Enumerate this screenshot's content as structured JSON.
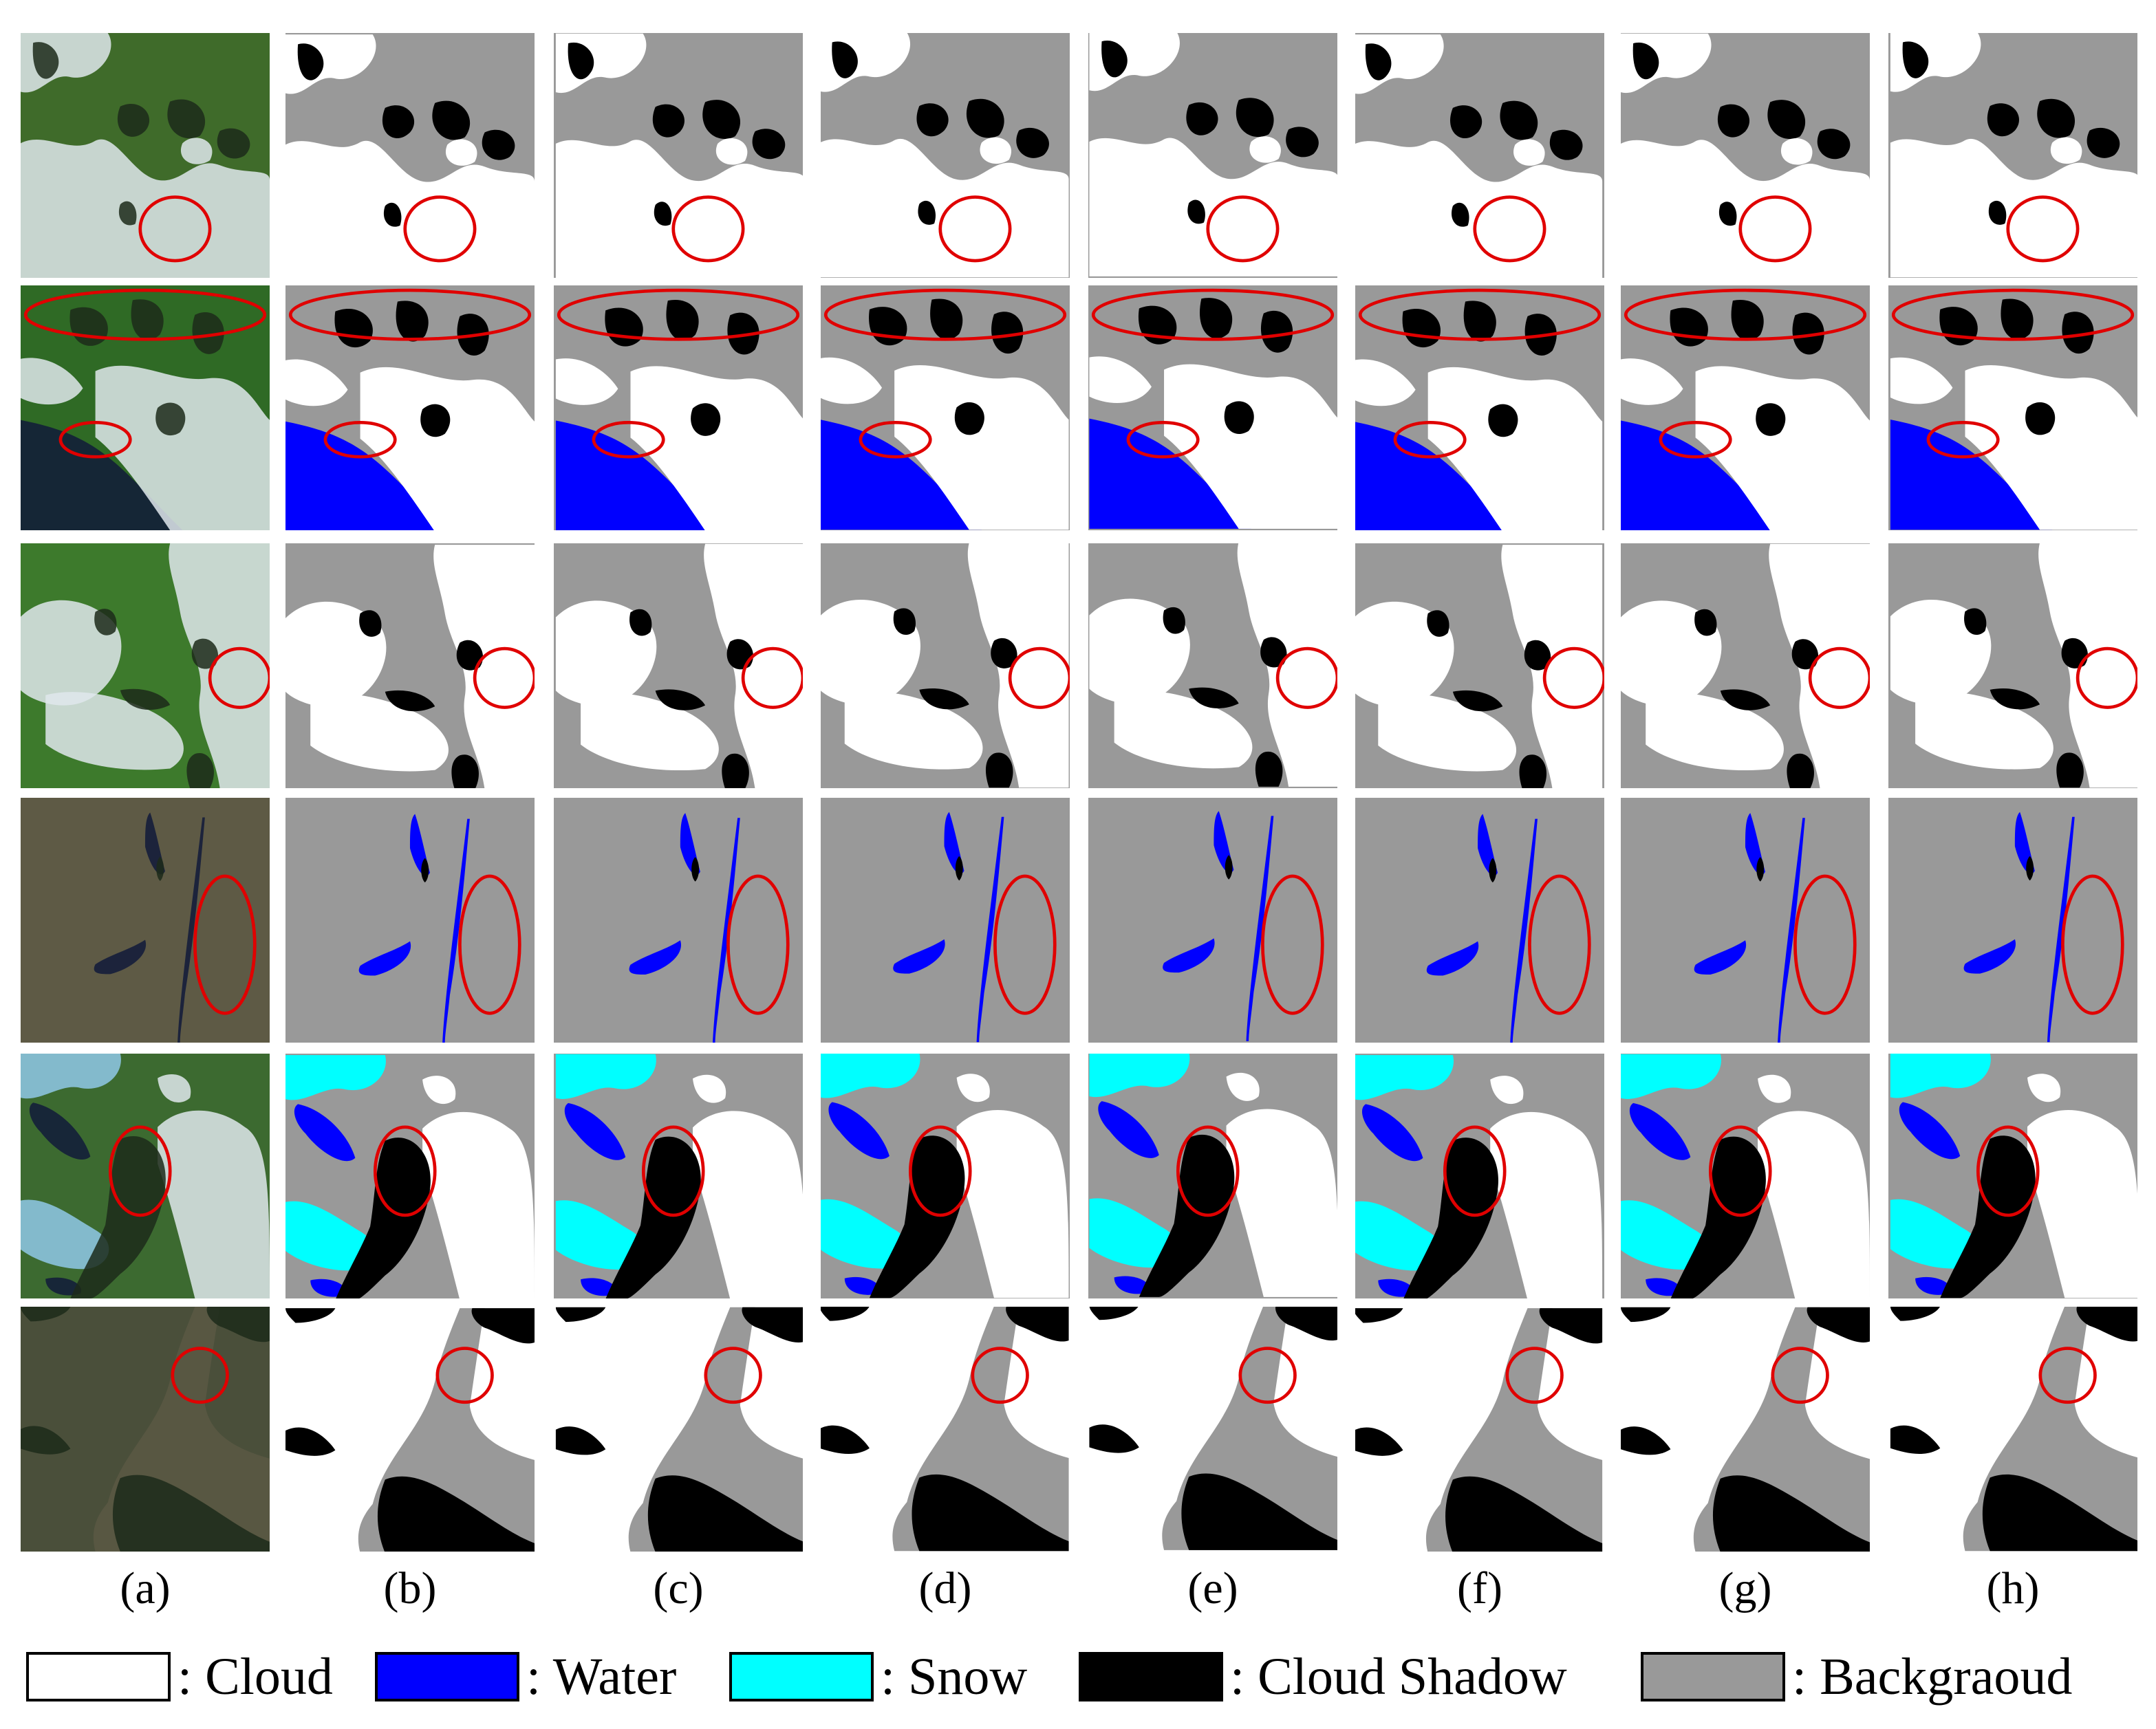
{
  "columns": [
    "(a)",
    "(b)",
    "(c)",
    "(d)",
    "(e)",
    "(f)",
    "(g)",
    "(h)"
  ],
  "legend": [
    {
      "label": ": Cloud",
      "color": "#ffffff"
    },
    {
      "label": ": Water",
      "color": "#0000ff"
    },
    {
      "label": ": Snow",
      "color": "#00ffff"
    },
    {
      "label": ": Cloud Shadow",
      "color": "#000000"
    },
    {
      "label": ": Backgraoud",
      "color": "#999999"
    }
  ],
  "colors": {
    "cloud": "#ffffff",
    "water": "#0000ff",
    "snow": "#00ffff",
    "shadow": "#000000",
    "background": "#999999",
    "highlight": "#e00000"
  },
  "rows": 6
}
